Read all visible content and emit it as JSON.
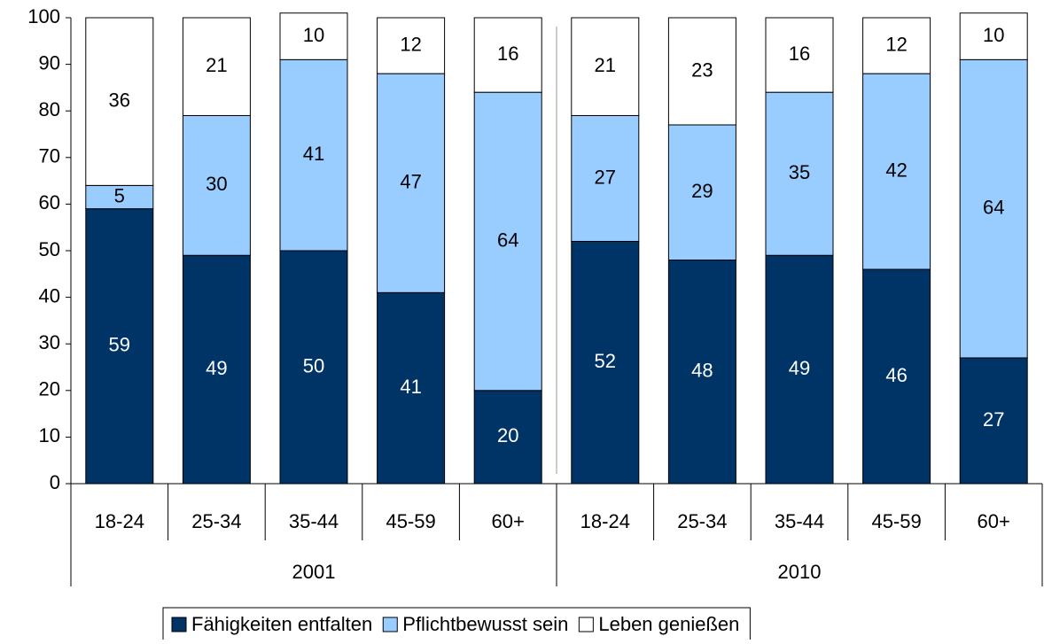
{
  "chart_data": {
    "type": "bar",
    "stacked": true,
    "groups": [
      {
        "name": "2001",
        "categories": [
          "18-24",
          "25-34",
          "35-44",
          "45-59",
          "60+"
        ]
      },
      {
        "name": "2010",
        "categories": [
          "18-24",
          "25-34",
          "35-44",
          "45-59",
          "60+"
        ]
      }
    ],
    "series": [
      {
        "name": "Fähigkeiten entfalten",
        "color": "#003366",
        "label_color": "#ffffff",
        "values": [
          59,
          49,
          50,
          41,
          20,
          52,
          48,
          49,
          46,
          27
        ]
      },
      {
        "name": "Pflichtbewusst sein",
        "color": "#99ccff",
        "label_color": "#000000",
        "values": [
          5,
          30,
          41,
          47,
          64,
          27,
          29,
          35,
          42,
          64
        ]
      },
      {
        "name": "Leben genießen",
        "color": "#ffffff",
        "label_color": "#000000",
        "values": [
          36,
          21,
          10,
          12,
          16,
          21,
          23,
          16,
          12,
          10
        ]
      }
    ],
    "ylim": [
      0,
      100
    ],
    "yticks": [
      0,
      10,
      20,
      30,
      40,
      50,
      60,
      70,
      80,
      90,
      100
    ],
    "legend": "bottom"
  }
}
